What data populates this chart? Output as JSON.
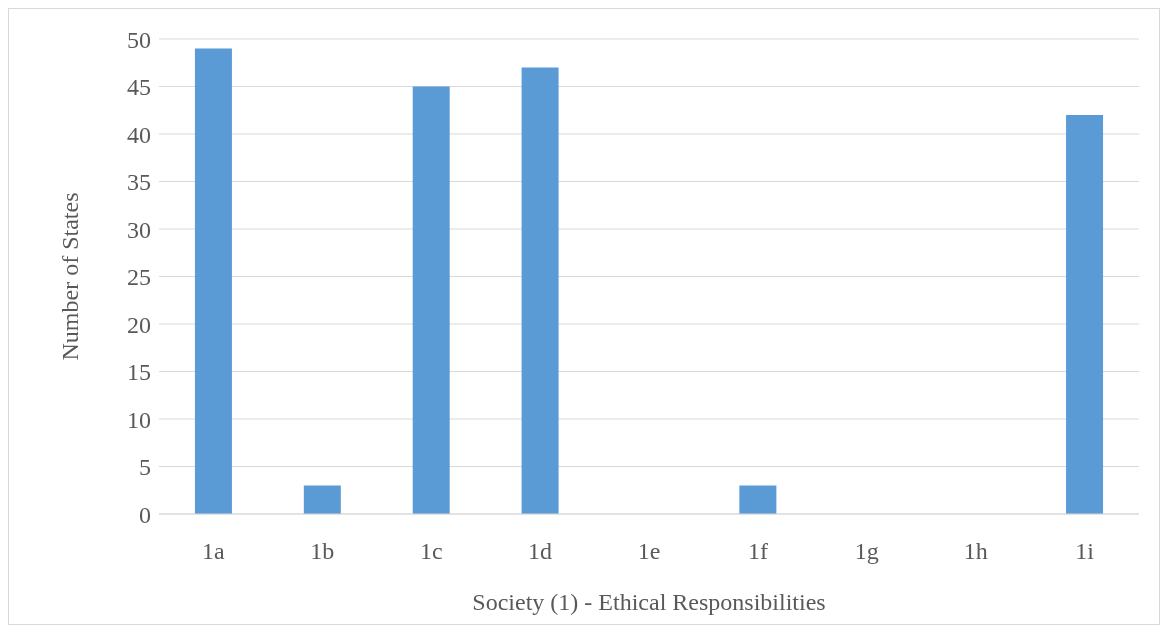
{
  "chart_data": {
    "type": "bar",
    "xlabel": "Society (1) - Ethical Responsibilities",
    "ylabel": "Number of States",
    "categories": [
      "1a",
      "1b",
      "1c",
      "1d",
      "1e",
      "1f",
      "1g",
      "1h",
      "1i"
    ],
    "values": [
      49,
      3,
      45,
      47,
      0,
      3,
      0,
      0,
      42
    ],
    "color": "#5b9bd5",
    "ylim": [
      0,
      50
    ],
    "yticks": [
      0,
      5,
      10,
      15,
      20,
      25,
      30,
      35,
      40,
      45,
      50
    ],
    "grid": "y",
    "legend": false
  }
}
